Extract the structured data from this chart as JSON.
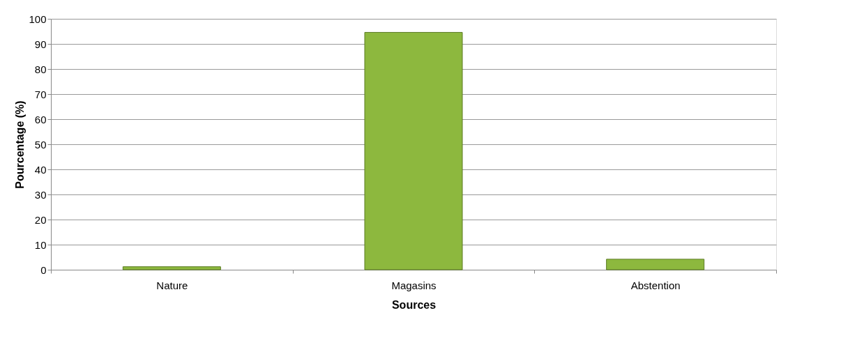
{
  "chart_data": {
    "type": "bar",
    "xlabel": "Sources",
    "ylabel": "Pourcentage (%)",
    "categories": [
      "Nature",
      "Magasins",
      "Abstention"
    ],
    "values": [
      1.2,
      94.6,
      4.2
    ],
    "color": "#8db83e",
    "ylim": [
      0,
      100
    ],
    "yticks": [
      0,
      10,
      20,
      30,
      40,
      50,
      60,
      70,
      80,
      90,
      100
    ],
    "grid": "y"
  }
}
